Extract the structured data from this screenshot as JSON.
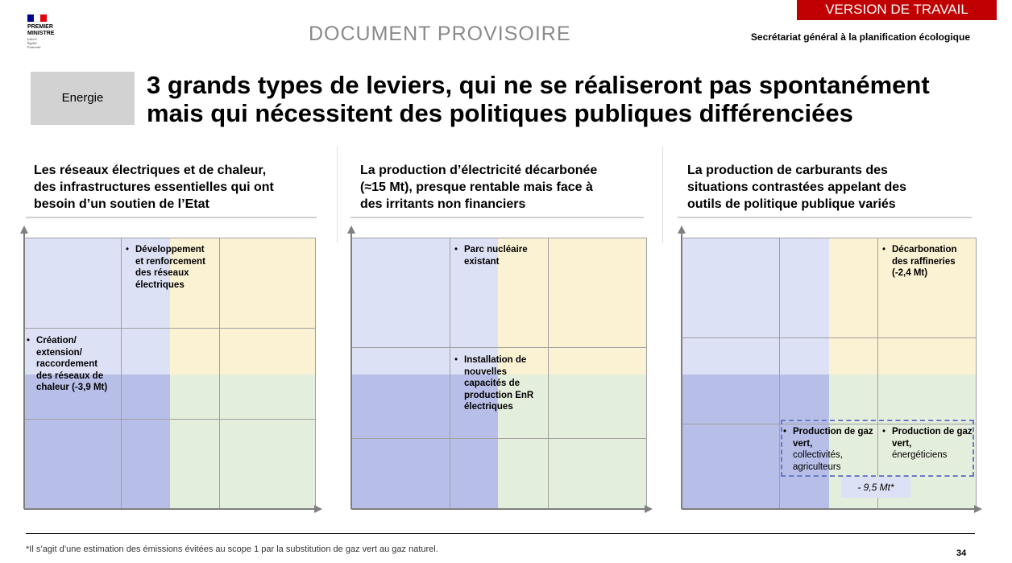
{
  "header": {
    "logo_lines": [
      "PREMIER",
      "MINISTRE"
    ],
    "logo_motto": [
      "Liberté",
      "Égalité",
      "Fraternité"
    ],
    "version_label": "VERSION DE TRAVAIL",
    "document_status": "DOCUMENT PROVISOIRE",
    "organization": "Secrétariat général à la planification écologique"
  },
  "section_tag": "Energie",
  "title_line1": "3 grands types de leviers, qui ne se réaliseront pas spontanément",
  "title_line2": "mais qui nécessitent des politiques publiques différenciées",
  "columns": [
    {
      "heading": [
        "Les réseaux électriques et de chaleur,",
        "des infrastructures essentielles qui ont",
        "besoin d’un soutien de l’Etat"
      ],
      "levers": [
        {
          "lines": [
            "Développement",
            "et renforcement",
            "des réseaux",
            "électriques"
          ]
        },
        {
          "lines": [
            "Création/",
            "extension/",
            "raccordement",
            "des réseaux de",
            "chaleur (-3,9 Mt)"
          ]
        }
      ]
    },
    {
      "heading": [
        "La production d’électricité décarbonée",
        "(≈15 Mt), presque rentable mais face à",
        "des irritants non financiers"
      ],
      "levers": [
        {
          "lines": [
            "Parc nucléaire",
            "existant"
          ]
        },
        {
          "lines": [
            "Installation de",
            "nouvelles",
            "capacités de",
            "production EnR",
            "électriques"
          ]
        }
      ]
    },
    {
      "heading": [
        "La production de carburants des",
        "situations contrastées appelant des",
        "outils de politique publique variés"
      ],
      "levers": [
        {
          "lines": [
            "Décarbonation",
            "des raffineries",
            "(-2,4 Mt)"
          ]
        },
        {
          "bold": "Production de gaz vert,",
          "lines": [
            "collectivités,",
            "agriculteurs"
          ]
        },
        {
          "bold": "Production de gaz vert,",
          "lines": [
            "énergéticiens"
          ]
        }
      ],
      "estimate": "- 9,5 Mt*"
    }
  ],
  "colors": {
    "blue": "#b7bee7",
    "light_blue": "#dde1f5",
    "yellow": "#fbf1d3",
    "green": "#e4eedc",
    "version_red": "#c00000"
  },
  "footnote": "*Il s’agit d’une estimation des émissions évitées au scope 1 par la substitution de gaz vert au gaz naturel.",
  "page_number": "34"
}
